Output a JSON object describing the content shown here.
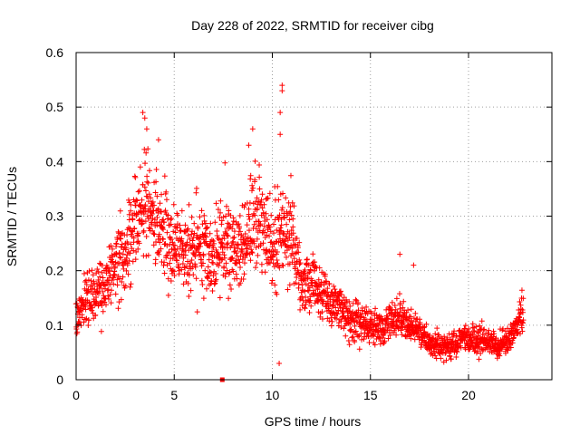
{
  "chart_data": {
    "type": "scatter",
    "title": "Day 228 of 2022, SRMTID for receiver cibg",
    "xlabel": "GPS time / hours",
    "ylabel": "SRMTID / TECUs",
    "xlim": [
      0,
      24.25
    ],
    "ylim": [
      0,
      0.6
    ],
    "x_ticks": [
      0,
      5,
      10,
      15,
      20
    ],
    "x_tick_labels": [
      "0",
      "5",
      "10",
      "15",
      "20"
    ],
    "y_ticks": [
      0,
      0.1,
      0.2,
      0.3,
      0.4,
      0.5,
      0.6
    ],
    "y_tick_labels": [
      "0",
      "0.1",
      "0.2",
      "0.3",
      "0.4",
      "0.5",
      "0.6"
    ],
    "grid": true,
    "marker": "plus",
    "color": "#ff0000",
    "envelope": {
      "x": [
        0,
        0.5,
        1,
        1.5,
        2,
        2.5,
        3,
        3.5,
        4,
        4.5,
        5,
        5.5,
        6,
        6.5,
        7,
        7.5,
        8,
        8.5,
        9,
        9.5,
        10,
        10.5,
        11,
        11.5,
        12,
        12.5,
        13,
        13.5,
        14,
        14.5,
        15,
        15.5,
        16,
        16.5,
        17,
        17.5,
        18,
        18.5,
        19,
        19.5,
        20,
        20.5,
        21,
        21.5,
        22,
        22.5,
        22.8
      ],
      "y": [
        0.1,
        0.15,
        0.15,
        0.18,
        0.2,
        0.22,
        0.29,
        0.33,
        0.3,
        0.26,
        0.25,
        0.24,
        0.23,
        0.24,
        0.22,
        0.24,
        0.25,
        0.24,
        0.28,
        0.28,
        0.24,
        0.27,
        0.25,
        0.18,
        0.17,
        0.15,
        0.14,
        0.13,
        0.11,
        0.1,
        0.1,
        0.09,
        0.11,
        0.11,
        0.1,
        0.09,
        0.07,
        0.06,
        0.06,
        0.07,
        0.08,
        0.07,
        0.07,
        0.06,
        0.07,
        0.1,
        0.13
      ]
    },
    "peaks": [
      {
        "x": 3.4,
        "y": 0.49
      },
      {
        "x": 3.5,
        "y": 0.48
      },
      {
        "x": 3.6,
        "y": 0.46
      },
      {
        "x": 4.2,
        "y": 0.44
      },
      {
        "x": 9.0,
        "y": 0.46
      },
      {
        "x": 8.8,
        "y": 0.43
      },
      {
        "x": 10.5,
        "y": 0.54
      },
      {
        "x": 10.5,
        "y": 0.53
      },
      {
        "x": 10.4,
        "y": 0.49
      },
      {
        "x": 10.4,
        "y": 0.45
      },
      {
        "x": 16.5,
        "y": 0.23
      },
      {
        "x": 17.2,
        "y": 0.21
      }
    ],
    "outliers": [
      {
        "x": 7.45,
        "y": 0.0,
        "marker": "square"
      },
      {
        "x": 10.35,
        "y": 0.03
      }
    ],
    "approx_points": 2200
  }
}
